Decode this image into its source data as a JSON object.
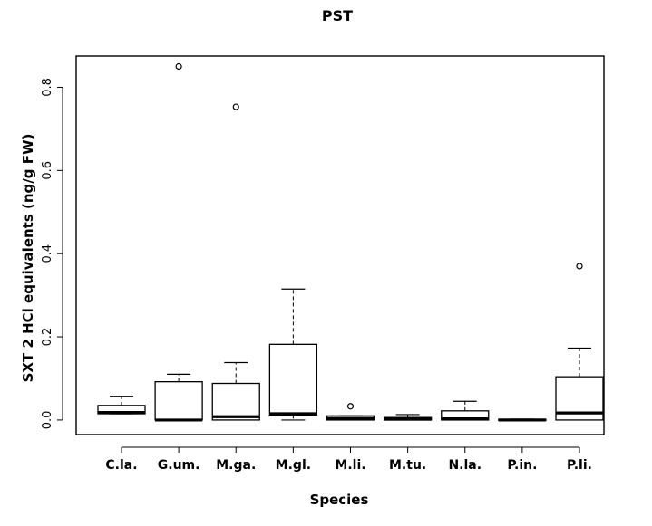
{
  "chart_data": {
    "type": "boxplot",
    "title": "PST",
    "xlabel": "Species",
    "ylabel": "SXT 2 HCl equivalents (ng/g FW)",
    "ylim": [
      -0.035,
      0.875
    ],
    "yticks": [
      "0.0",
      "0.2",
      "0.4",
      "0.6",
      "0.8"
    ],
    "categories": [
      "C.la.",
      "G.um.",
      "M.ga.",
      "M.gl.",
      "M.li.",
      "M.tu.",
      "N.la.",
      "P.in.",
      "P.li."
    ],
    "boxes": [
      {
        "category": "C.la.",
        "whisker_low": 0.015,
        "q1": 0.015,
        "median": 0.018,
        "q3": 0.035,
        "whisker_high": 0.057,
        "outliers": []
      },
      {
        "category": "G.um.",
        "whisker_low": 0.0,
        "q1": 0.0,
        "median": 0.0,
        "q3": 0.092,
        "whisker_high": 0.11,
        "outliers": [
          0.85
        ]
      },
      {
        "category": "M.ga.",
        "whisker_low": 0.0,
        "q1": 0.0,
        "median": 0.008,
        "q3": 0.088,
        "whisker_high": 0.138,
        "outliers": [
          0.753
        ]
      },
      {
        "category": "M.gl.",
        "whisker_low": 0.0,
        "q1": 0.012,
        "median": 0.015,
        "q3": 0.182,
        "whisker_high": 0.315,
        "outliers": []
      },
      {
        "category": "M.li.",
        "whisker_low": 0.0,
        "q1": 0.0,
        "median": 0.004,
        "q3": 0.01,
        "whisker_high": 0.01,
        "outliers": [
          0.033
        ]
      },
      {
        "category": "M.tu.",
        "whisker_low": 0.0,
        "q1": 0.0,
        "median": 0.002,
        "q3": 0.006,
        "whisker_high": 0.013,
        "outliers": []
      },
      {
        "category": "N.la.",
        "whisker_low": 0.0,
        "q1": 0.0,
        "median": 0.003,
        "q3": 0.022,
        "whisker_high": 0.045,
        "outliers": []
      },
      {
        "category": "P.in.",
        "whisker_low": 0.0,
        "q1": 0.0,
        "median": 0.0,
        "q3": 0.002,
        "whisker_high": 0.002,
        "outliers": []
      },
      {
        "category": "P.li.",
        "whisker_low": 0.0,
        "q1": 0.0,
        "median": 0.017,
        "q3": 0.104,
        "whisker_high": 0.173,
        "outliers": [
          0.37
        ]
      }
    ],
    "grid": false,
    "legend": "none"
  }
}
